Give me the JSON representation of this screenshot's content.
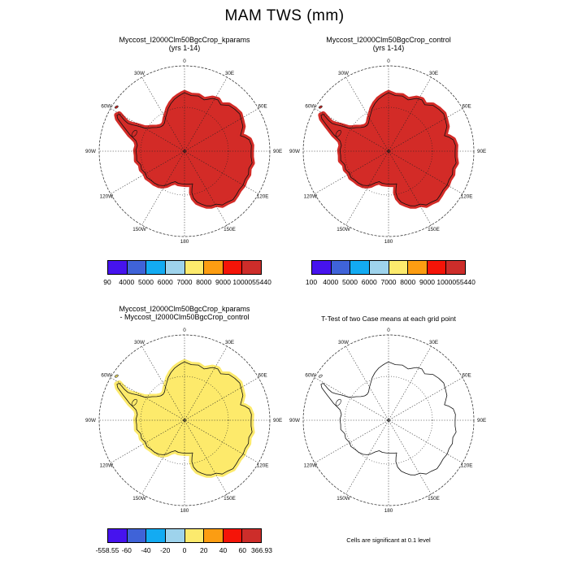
{
  "title": "MAM TWS (mm)",
  "map_common": {
    "lon_labels": [
      "0",
      "30E",
      "60E",
      "90E",
      "120E",
      "150E",
      "180",
      "150W",
      "120W",
      "90W",
      "60W",
      "30W"
    ]
  },
  "colorbar_colors": [
    "#4613ee",
    "#3f63d8",
    "#13abf2",
    "#9ed3ec",
    "#fcea6d",
    "#fc9d12",
    "#f51408",
    "#cd2d2a"
  ],
  "panels": [
    {
      "key": "kparams",
      "title": "Myccost_I2000Clm50BgcCrop_kparams",
      "subtitle": "(yrs 1-14)",
      "map_fill": "#d32b27",
      "colorbar_labels": [
        "90",
        "4000",
        "5000",
        "6000",
        "7000",
        "8000",
        "9000",
        "10000",
        "55440"
      ]
    },
    {
      "key": "control",
      "title": "Myccost_I2000Clm50BgcCrop_control",
      "subtitle": "(yrs 1-14)",
      "map_fill": "#d32b27",
      "colorbar_labels": [
        "100",
        "4000",
        "5000",
        "6000",
        "7000",
        "8000",
        "9000",
        "10000",
        "55440"
      ]
    },
    {
      "key": "difference",
      "title": "Myccost_I2000Clm50BgcCrop_kparams",
      "subtitle": "- Myccost_I2000Clm50BgcCrop_control",
      "map_fill": "#fdea6b",
      "colorbar_labels": [
        "-558.55",
        "-60",
        "-40",
        "-20",
        "0",
        "20",
        "40",
        "60",
        "366.93"
      ]
    },
    {
      "key": "ttest",
      "title": "T-Test of two Case means at each grid point",
      "subtitle": "",
      "map_fill": "none",
      "caption": "Cells are significant at 0.1 level"
    }
  ]
}
